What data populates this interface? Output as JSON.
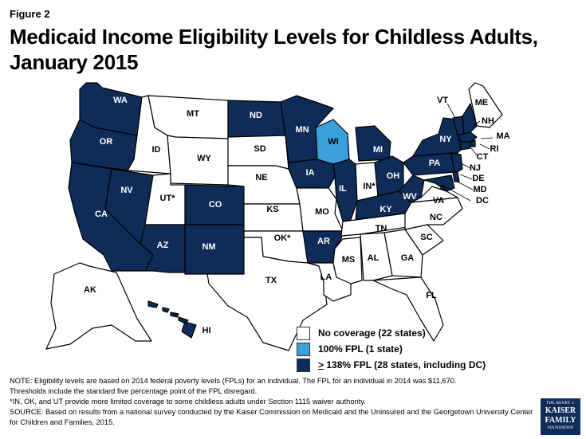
{
  "figure_label": "Figure 2",
  "title_line1": "Medicaid Income Eligibility Levels for Childless Adults,",
  "title_line2": "January 2015",
  "colors": {
    "none": "#ffffff",
    "hundred": "#3aa0dd",
    "expansion": "#0e2c57"
  },
  "legend": [
    {
      "key": "none",
      "label": "No coverage (22 states)"
    },
    {
      "key": "hundred",
      "label": "100% FPL (1 state)"
    },
    {
      "key": "expansion",
      "label_prefix": ">",
      "label": " 138% FPL (28 states, including DC)"
    }
  ],
  "states": {
    "WA": "expansion",
    "OR": "expansion",
    "CA": "expansion",
    "NV": "expansion",
    "ID": "none",
    "MT": "none",
    "WY": "none",
    "UT": "none",
    "AZ": "expansion",
    "CO": "expansion",
    "NM": "expansion",
    "ND": "expansion",
    "SD": "none",
    "NE": "none",
    "KS": "none",
    "OK": "none",
    "TX": "none",
    "MN": "expansion",
    "IA": "expansion",
    "MO": "none",
    "AR": "expansion",
    "LA": "none",
    "WI": "hundred",
    "IL": "expansion",
    "MS": "none",
    "MI": "expansion",
    "IN": "none",
    "KY": "expansion",
    "TN": "none",
    "AL": "none",
    "OH": "expansion",
    "WV": "expansion",
    "GA": "none",
    "FL": "none",
    "SC": "none",
    "NC": "none",
    "VA": "none",
    "PA": "expansion",
    "NY": "expansion",
    "ME": "none",
    "VT": "expansion",
    "NH": "expansion",
    "MA": "expansion",
    "RI": "expansion",
    "CT": "expansion",
    "NJ": "expansion",
    "DE": "expansion",
    "MD": "expansion",
    "DC": "expansion",
    "AK": "none",
    "HI": "expansion"
  },
  "labels": {
    "WA": "WA",
    "OR": "OR",
    "CA": "CA",
    "NV": "NV",
    "ID": "ID",
    "MT": "MT",
    "WY": "WY",
    "UT": "UT*",
    "AZ": "AZ",
    "CO": "CO",
    "NM": "NM",
    "ND": "ND",
    "SD": "SD",
    "NE": "NE",
    "KS": "KS",
    "OK": "OK*",
    "TX": "TX",
    "MN": "MN",
    "IA": "IA",
    "MO": "MO",
    "AR": "AR",
    "LA": "LA",
    "WI": "WI",
    "IL": "IL",
    "MS": "MS",
    "MI": "MI",
    "IN": "IN*",
    "KY": "KY",
    "TN": "TN",
    "AL": "AL",
    "OH": "OH",
    "WV": "WV",
    "GA": "GA",
    "FL": "FL",
    "SC": "SC",
    "NC": "NC",
    "VA": "VA",
    "PA": "PA",
    "NY": "NY",
    "ME": "ME",
    "VT": "VT",
    "NH": "NH",
    "MA": "MA",
    "RI": "RI",
    "CT": "CT",
    "NJ": "NJ",
    "DE": "DE",
    "MD": "MD",
    "DC": "DC",
    "AK": "AK",
    "HI": "HI"
  },
  "notes": [
    "NOTE: Eligibility levels are based on 2014 federal poverty levels (FPLs) for an individual. The FPL for an individual in 2014 was $11,670.",
    "Thresholds include the standard five percentage point of the FPL disregard.",
    "*IN, OK, and UT provide more limited coverage to some childless adults under Section 1115 waiver authority.",
    "SOURCE: Based on results from a national survey conducted by the Kaiser Commission on Medicaid and the Uninsured and the Georgetown University Center for Children and Families, 2015."
  ],
  "logo": {
    "line1": "THE HENRY J.",
    "line2": "KAISER",
    "line3": "FAMILY",
    "line4": "FOUNDATION"
  }
}
